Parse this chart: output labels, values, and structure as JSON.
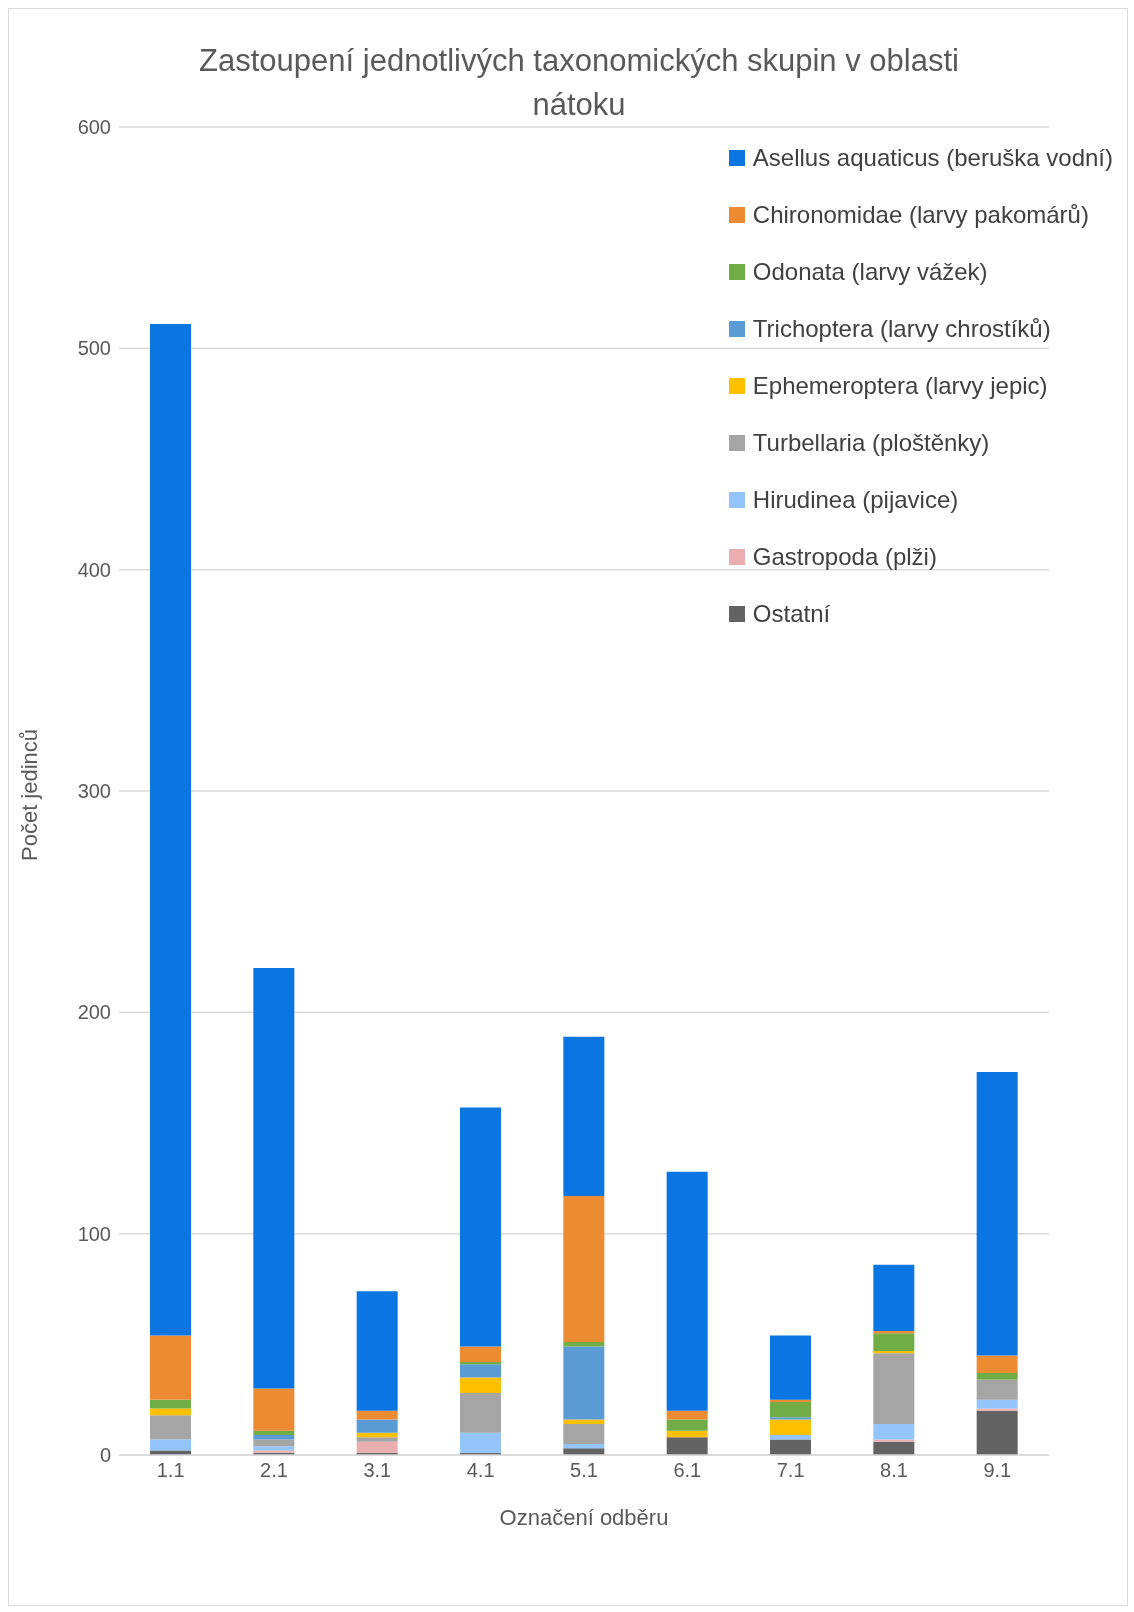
{
  "chart_data": {
    "type": "bar",
    "title": "Zastoupení jednotlivých taxonomických skupin v oblasti nátoku",
    "xlabel": "Označení odběru",
    "ylabel": "Počet jedinců",
    "categories": [
      "1.1",
      "2.1",
      "3.1",
      "4.1",
      "5.1",
      "6.1",
      "7.1",
      "8.1",
      "9.1"
    ],
    "stacked": true,
    "ylim": [
      0,
      600
    ],
    "yticks": [
      0,
      100,
      200,
      300,
      400,
      500,
      600
    ],
    "grid": "y",
    "legend": "top right",
    "series": [
      {
        "name": "Ostatní",
        "color": "#636363",
        "values": [
          2,
          1,
          1,
          1,
          3,
          8,
          7,
          6,
          20
        ]
      },
      {
        "name": "Gastropoda (plži)",
        "color": "#eaaeb0",
        "values": [
          0,
          1,
          5,
          0,
          0,
          0,
          0,
          1,
          1
        ]
      },
      {
        "name": "Hirudinea (pijavice)",
        "color": "#93c5fa",
        "values": [
          5,
          2,
          0,
          9,
          2,
          0,
          2,
          7,
          4
        ]
      },
      {
        "name": "Turbellaria (ploštěnky)",
        "color": "#a5a5a5",
        "values": [
          11,
          3,
          2,
          18,
          9,
          0,
          0,
          32,
          9
        ]
      },
      {
        "name": "Ephemeroptera (larvy jepic)",
        "color": "#ffc000",
        "values": [
          3,
          0,
          2,
          7,
          2,
          3,
          7,
          1,
          0
        ]
      },
      {
        "name": "Trichoptera (larvy chrostíků)",
        "color": "#5b9bd5",
        "values": [
          0,
          2,
          6,
          6,
          33,
          0,
          1,
          0,
          0
        ]
      },
      {
        "name": "Odonata (larvy vážek)",
        "color": "#70ad47",
        "values": [
          4,
          2,
          0,
          1,
          2,
          5,
          7,
          8,
          3
        ]
      },
      {
        "name": "Chironomidae (larvy pakomárů)",
        "color": "#ed8b32",
        "values": [
          29,
          19,
          4,
          7,
          66,
          4,
          1,
          1,
          8
        ]
      },
      {
        "name": "Asellus aquaticus (beruška vodní)",
        "color": "#0b75e2",
        "values": [
          457,
          190,
          54,
          108,
          72,
          108,
          29,
          30,
          128
        ]
      }
    ]
  }
}
